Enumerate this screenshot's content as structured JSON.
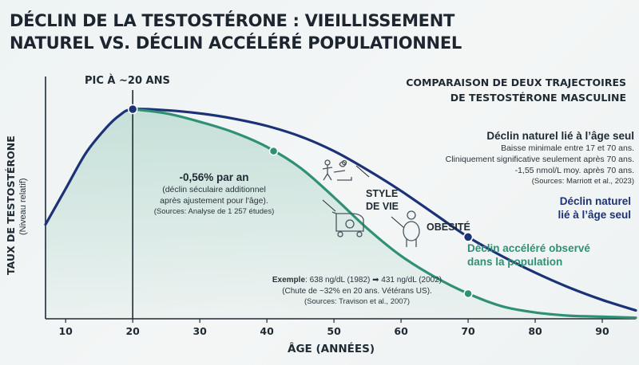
{
  "title_lines": [
    "DÉCLIN DE LA TESTOSTÉRONE : VIEILLISSEMENT",
    "NATUREL VS. DÉCLIN ACCÉLÉRÉ POPULATIONNEL"
  ],
  "subtitle_lines": [
    "COMPARAISON DE DEUX TRAJECTOIRES",
    "DE TESTOSTÉRONE MASCULINE"
  ],
  "peak_label": "PIC À ~20 ANS",
  "natural_note": {
    "title": "Déclin naturel lié à l’âge seul",
    "lines": [
      "Baisse minimale entre 17 et 70 ans.",
      "Cliniquement significative seulement après 70 ans.",
      "-1,55 nmol/L moy. après 70 ans."
    ],
    "source": "(Sources: Marriott et al., 2023)"
  },
  "secular_note": {
    "title": "-0,56% par an",
    "lines": [
      "(déclin séculaire additionnel",
      "après ajustement pour l'âge)."
    ],
    "source": "(Sources: Analyse de 1 257 études)"
  },
  "lifestyle_label_lines": [
    "STYLE",
    "DE VIE"
  ],
  "obesity_label": "OBÉSITÉ",
  "example_note": {
    "prefix": "Exemple",
    "text": ": 638 ng/dL (1982) ➡ 431 ng/dL (2002)",
    "line2": "(Chute de ~32% en 20 ans. Vétérans US).",
    "source": "(Sources: Travison et al., 2007)"
  },
  "icons": [
    "exercise-person-icon",
    "stroller-icon",
    "obese-person-icon"
  ],
  "colors": {
    "natural": "#1c3276",
    "accelerated": "#2f9076",
    "area": "#b7d9cf"
  },
  "chart_data": {
    "type": "line",
    "title": "DÉCLIN DE LA TESTOSTÉRONE : VIEILLISSEMENT NATUREL VS. DÉCLIN ACCÉLÉRÉ POPULATIONNEL",
    "xlabel": "ÂGE (ANNÉES)",
    "ylabel": "TAUX DE TESTOSTÉRONE",
    "ylabel_sub": "(Niveau relatif)",
    "xlim": [
      7,
      95
    ],
    "ylim": [
      0,
      100
    ],
    "xticks": [
      10,
      20,
      30,
      40,
      50,
      60,
      70,
      80,
      90
    ],
    "grid": false,
    "peak_x": 20,
    "series": [
      {
        "name": "Déclin naturel lié à l’âge seul",
        "x": [
          7,
          10,
          13,
          16,
          18,
          20,
          25,
          30,
          35,
          40,
          45,
          50,
          55,
          60,
          65,
          70,
          75,
          80,
          85,
          90,
          95
        ],
        "y": [
          45,
          62,
          79,
          91,
          97,
          100,
          99.5,
          98,
          95.5,
          92,
          87,
          80,
          71,
          61,
          50,
          39,
          30,
          22,
          15,
          9,
          4
        ],
        "markers_x": [
          20,
          70
        ]
      },
      {
        "name": "Déclin accéléré observé dans la population",
        "x": [
          20,
          25,
          30,
          35,
          40,
          45,
          50,
          55,
          60,
          65,
          70,
          75,
          80,
          85,
          90,
          95
        ],
        "y": [
          100,
          98,
          94,
          89,
          82,
          72,
          58,
          43,
          30,
          20,
          12,
          6,
          3,
          1.5,
          1,
          0.5
        ],
        "markers_x": [
          20,
          41,
          70
        ]
      }
    ]
  }
}
